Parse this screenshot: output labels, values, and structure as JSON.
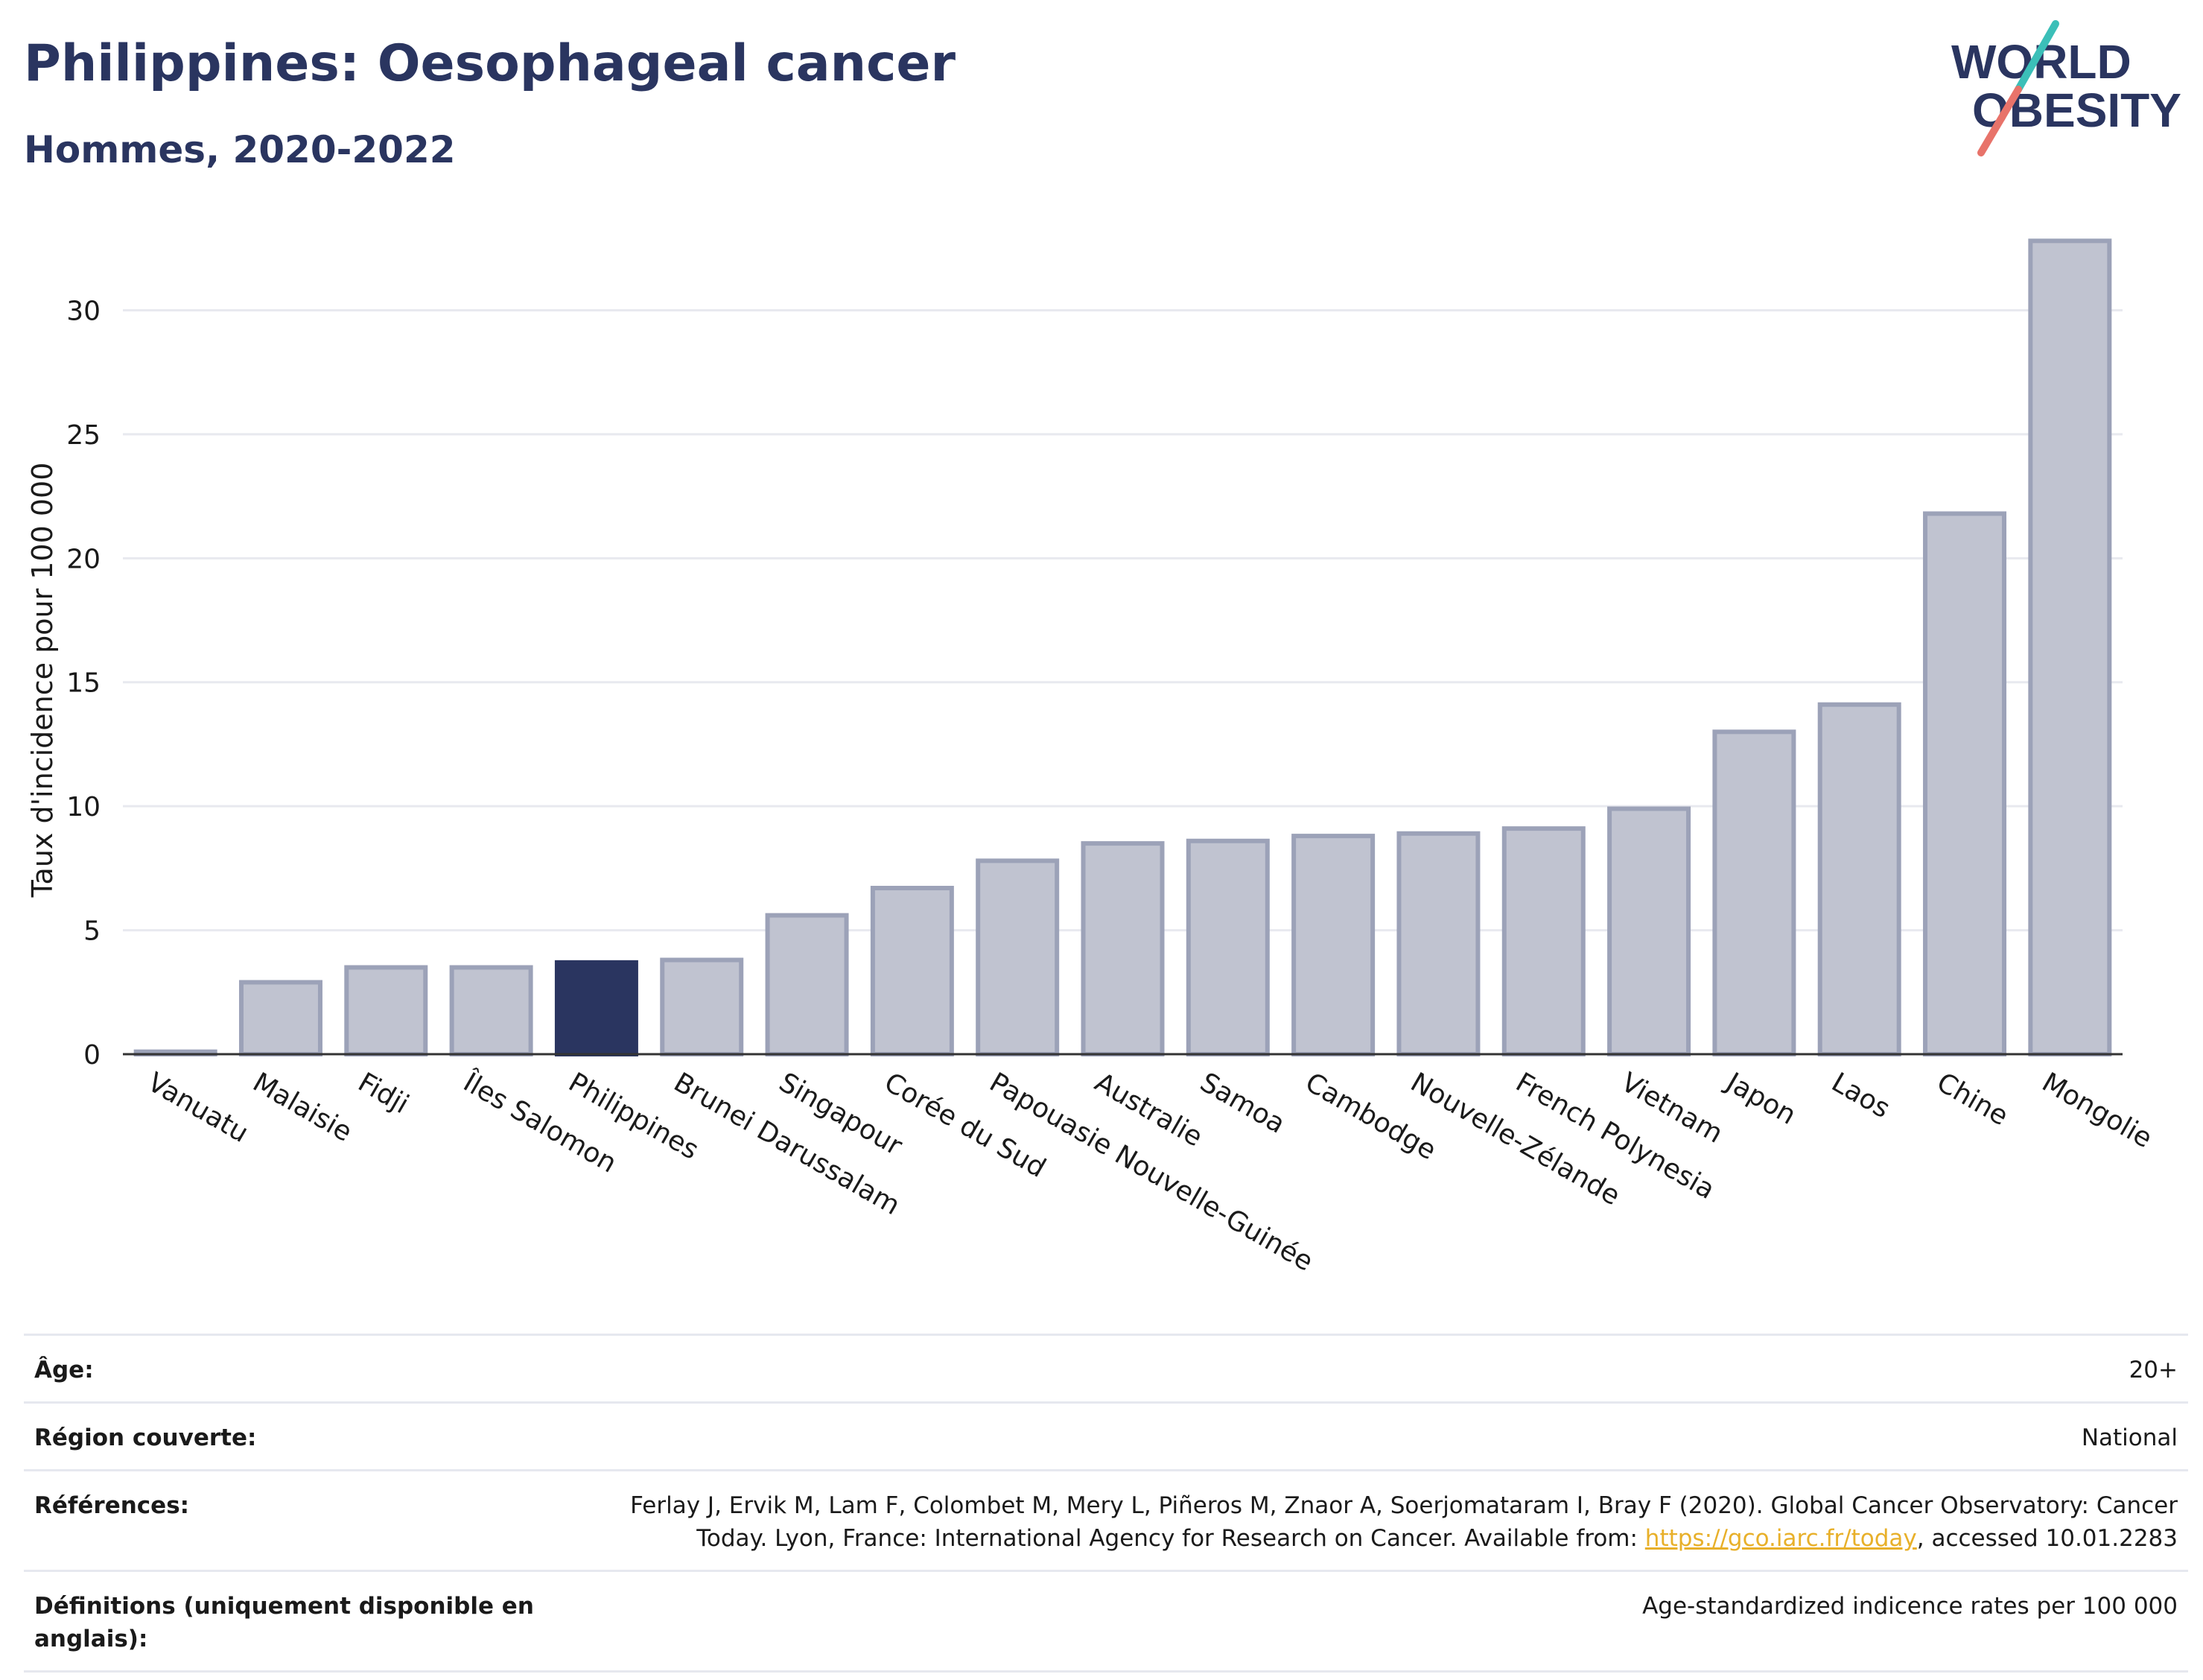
{
  "header": {
    "title": "Philippines: Oesophageal cancer",
    "subtitle": "Hommes, 2020-2022"
  },
  "logo": {
    "line1": "WORLD",
    "line2": "OBESITY",
    "accent_teal": "#3bbfb8",
    "accent_coral": "#e8736a"
  },
  "colors": {
    "highlight": "#2a3560",
    "bar_fill": "#c0c3d0",
    "bar_stroke": "#9ca2b8",
    "grid": "#e8e9ef",
    "axis": "#333333"
  },
  "chart_data": {
    "type": "bar",
    "title": "Philippines: Oesophageal cancer",
    "subtitle": "Hommes, 2020-2022",
    "xlabel": "",
    "ylabel": "Taux d'incidence pour 100 000",
    "ylim": [
      0,
      33.5
    ],
    "yticks": [
      0,
      5,
      10,
      15,
      20,
      25,
      30
    ],
    "grid": true,
    "highlight": "Philippines",
    "categories": [
      "Vanuatu",
      "Malaisie",
      "Fidji",
      "Îles Salomon",
      "Philippines",
      "Brunei Darussalam",
      "Singapour",
      "Corée du Sud",
      "Papouasie Nouvelle-Guinée",
      "Australie",
      "Samoa",
      "Cambodge",
      "Nouvelle-Zélande",
      "French Polynesia",
      "Vietnam",
      "Japon",
      "Laos",
      "Chine",
      "Mongolie"
    ],
    "values": [
      0.1,
      2.9,
      3.5,
      3.5,
      3.7,
      3.8,
      5.6,
      6.7,
      7.8,
      8.5,
      8.6,
      8.8,
      8.9,
      9.1,
      9.9,
      13.0,
      14.1,
      21.8,
      32.8
    ]
  },
  "meta": [
    {
      "label": "Âge:",
      "value": "20+"
    },
    {
      "label": "Région couverte:",
      "value": "National"
    },
    {
      "label": "Références:",
      "value_pre": "Ferlay J, Ervik M, Lam F, Colombet M, Mery L, Piñeros M, Znaor A, Soerjomataram I, Bray F (2020). Global Cancer Observatory: Cancer Today. Lyon, France: International Agency for Research on Cancer. Available from: ",
      "link": "https://gco.iarc.fr/today",
      "value_post": ", accessed 10.01.2283"
    },
    {
      "label": "Définitions (uniquement disponible en anglais):",
      "value": "Age-standardized indicence rates per 100 000"
    }
  ]
}
